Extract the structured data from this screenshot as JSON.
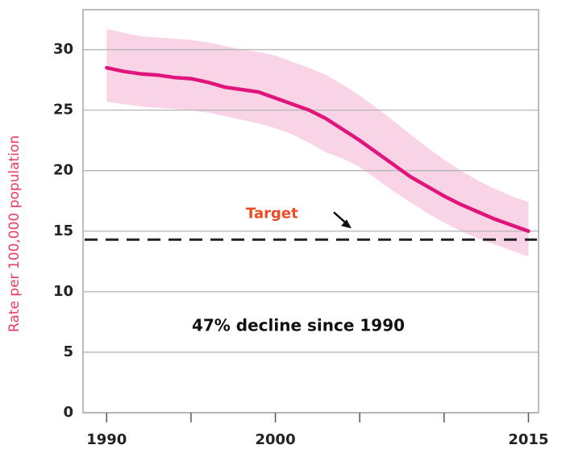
{
  "chart_data": {
    "type": "line",
    "y_label": "Rate per 100,000 population",
    "x": [
      1990,
      1991,
      1992,
      1993,
      1994,
      1995,
      1996,
      1997,
      1998,
      1999,
      2000,
      2001,
      2002,
      2003,
      2004,
      2005,
      2006,
      2007,
      2008,
      2009,
      2010,
      2011,
      2012,
      2013,
      2014,
      2015
    ],
    "series": [
      {
        "color": "#e0147b",
        "values": [
          28.5,
          28.2,
          28.0,
          27.9,
          27.7,
          27.6,
          27.3,
          26.9,
          26.7,
          26.5,
          26.0,
          25.5,
          25.0,
          24.3,
          23.4,
          22.5,
          21.5,
          20.5,
          19.5,
          18.7,
          17.9,
          17.2,
          16.6,
          16.0,
          15.5,
          15.0
        ]
      }
    ],
    "band": {
      "color": "#f9d3e6",
      "upper": [
        31.7,
        31.4,
        31.1,
        31.0,
        30.9,
        30.8,
        30.6,
        30.3,
        30.0,
        29.8,
        29.5,
        29.0,
        28.5,
        27.9,
        27.1,
        26.2,
        25.2,
        24.1,
        23.0,
        21.9,
        20.9,
        20.0,
        19.2,
        18.5,
        17.9,
        17.4
      ],
      "lower": [
        25.7,
        25.5,
        25.3,
        25.2,
        25.1,
        25.0,
        24.8,
        24.5,
        24.2,
        23.9,
        23.5,
        23.0,
        22.3,
        21.5,
        21.0,
        20.3,
        19.3,
        18.3,
        17.4,
        16.5,
        15.7,
        15.0,
        14.4,
        13.9,
        13.4,
        12.9
      ]
    },
    "target": {
      "label": "Target",
      "value": 14.3,
      "color": "#ef4a23"
    },
    "annotation": "47% decline since 1990",
    "xlim": [
      1988.6,
      2015.6
    ],
    "ylim": [
      0,
      33.3
    ],
    "xticks": [
      1990,
      2000,
      2015
    ],
    "xminor_ticks": [
      1995,
      2005,
      2010
    ],
    "yticks": [
      0,
      5,
      10,
      15,
      20,
      25,
      30
    ],
    "grid": true
  }
}
